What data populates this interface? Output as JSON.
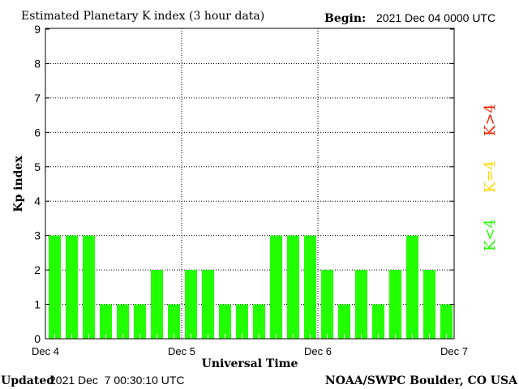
{
  "chart_data": {
    "type": "bar",
    "title": "Estimated Planetary K index (3 hour data)",
    "begin_label": "Begin:",
    "begin_value": "2021 Dec 04 0000 UTC",
    "xlabel": "Universal Time",
    "ylabel": "Kp index",
    "ylim": [
      0,
      9
    ],
    "yticks": [
      "0",
      "1",
      "2",
      "3",
      "4",
      "5",
      "6",
      "7",
      "8",
      "9"
    ],
    "xticks": [
      "Dec 4",
      "Dec 5",
      "Dec 6",
      "Dec 7"
    ],
    "grid": true,
    "bar_color": "#22ff00",
    "values": [
      3,
      3,
      3,
      1,
      1,
      1,
      2,
      1,
      2,
      2,
      1,
      1,
      1,
      3,
      3,
      3,
      2,
      1,
      2,
      1,
      2,
      3,
      2,
      1
    ],
    "legend": [
      {
        "label": "K<4",
        "color": "#22ff00"
      },
      {
        "label": "K=4",
        "color": "#ffd800"
      },
      {
        "label": "K>4",
        "color": "#ff2200"
      }
    ],
    "legend_placement": "right"
  },
  "footer": {
    "updated_label": "Updated",
    "updated_value": "2021 Dec  7 00:30:10 UTC",
    "source": "NOAA/SWPC Boulder, CO USA"
  }
}
